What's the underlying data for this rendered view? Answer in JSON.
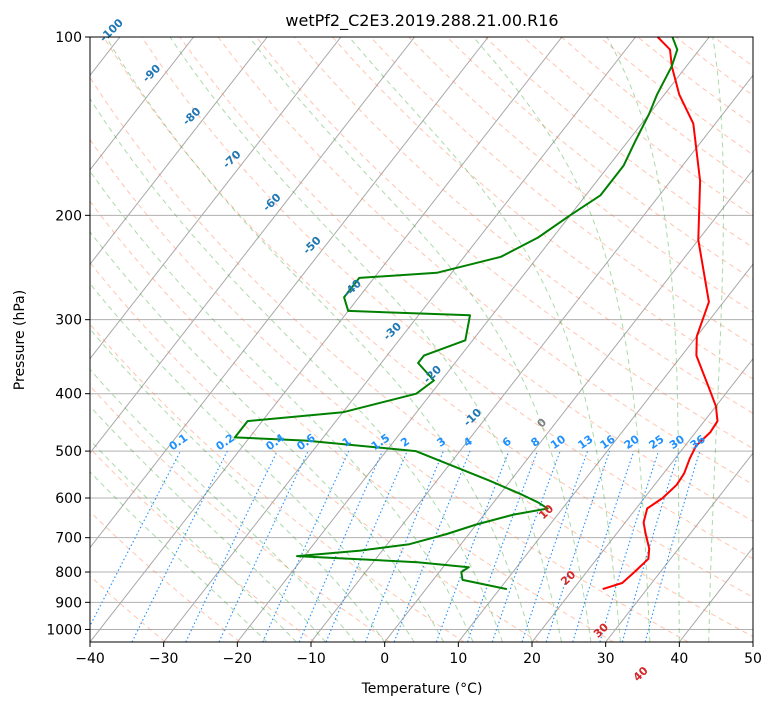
{
  "chart_data": {
    "type": "line",
    "title": "wetPf2_C2E3.2019.288.21.00.R16",
    "xlabel": "Temperature (°C)",
    "ylabel": "Pressure (hPa)",
    "xlim": [
      -40,
      50
    ],
    "ylim": [
      1050,
      100
    ],
    "y_scale": "log",
    "x_ticks": [
      -40,
      -30,
      -20,
      -10,
      0,
      10,
      20,
      30,
      40,
      50
    ],
    "y_ticks": [
      100,
      200,
      300,
      400,
      500,
      600,
      700,
      800,
      900,
      1000
    ],
    "grid": true,
    "series": [
      {
        "color": "#ff0000",
        "points": [
          [
            24,
            855
          ],
          [
            26,
            835
          ],
          [
            26.5,
            800
          ],
          [
            27,
            760
          ],
          [
            26,
            730
          ],
          [
            24,
            690
          ],
          [
            22.5,
            660
          ],
          [
            21.5,
            625
          ],
          [
            22.5,
            600
          ],
          [
            23,
            570
          ],
          [
            22.8,
            545
          ],
          [
            22,
            515
          ],
          [
            21.5,
            490
          ],
          [
            22,
            465
          ],
          [
            21.8,
            445
          ],
          [
            20,
            420
          ],
          [
            17,
            390
          ],
          [
            12,
            345
          ],
          [
            10,
            320
          ],
          [
            8,
            280
          ],
          [
            0,
            220
          ],
          [
            -6,
            175
          ],
          [
            -13,
            140
          ],
          [
            -18,
            125
          ],
          [
            -22,
            112
          ],
          [
            -24,
            105
          ],
          [
            -27,
            100
          ]
        ]
      },
      {
        "color": "#008000",
        "points": [
          [
            11,
            855
          ],
          [
            4,
            825
          ],
          [
            3,
            800
          ],
          [
            3.5,
            785
          ],
          [
            -4,
            770
          ],
          [
            -21,
            752
          ],
          [
            -13,
            736
          ],
          [
            -7,
            718
          ],
          [
            -3,
            690
          ],
          [
            0,
            665
          ],
          [
            4,
            640
          ],
          [
            8,
            625
          ],
          [
            6,
            610
          ],
          [
            3,
            592
          ],
          [
            -3,
            560
          ],
          [
            -16,
            500
          ],
          [
            -32,
            480
          ],
          [
            -42,
            474
          ],
          [
            -42,
            445
          ],
          [
            -30,
            430
          ],
          [
            -22,
            400
          ],
          [
            -21,
            380
          ],
          [
            -25,
            355
          ],
          [
            -25,
            345
          ],
          [
            -21,
            325
          ],
          [
            -23,
            295
          ],
          [
            -40,
            290
          ],
          [
            -42,
            275
          ],
          [
            -42,
            255
          ],
          [
            -32,
            250
          ],
          [
            -25,
            235
          ],
          [
            -22,
            218
          ],
          [
            -20,
            200
          ],
          [
            -18,
            185
          ],
          [
            -18,
            165
          ],
          [
            -19,
            150
          ],
          [
            -20,
            135
          ],
          [
            -21,
            125
          ],
          [
            -22,
            112
          ],
          [
            -23,
            105
          ],
          [
            -25,
            100
          ]
        ]
      }
    ],
    "isotherms": {
      "values": [
        -100,
        -90,
        -80,
        -70,
        -60,
        -50,
        -40,
        -30,
        -20,
        -10,
        0,
        10,
        20,
        30,
        40,
        50
      ],
      "color": "#1f77b4"
    },
    "dry_adiabats": {
      "color": "#ff7f50"
    },
    "moist_adiabats": {
      "color": "#2ca02c"
    },
    "mixing_ratio": {
      "values": [
        0.1,
        0.2,
        0.4,
        0.6,
        1,
        1.5,
        2,
        3,
        4,
        6,
        8,
        10,
        13,
        16,
        20,
        25,
        30,
        36
      ],
      "color": "#1e90ff"
    },
    "labels": {
      "isotherms": [
        "-100",
        "-90",
        "-80",
        "-70",
        "-60",
        "-50",
        "-40",
        "-30",
        "-20",
        "-10",
        "0",
        "10",
        "20",
        "30",
        "40"
      ],
      "mixing_ratio": [
        "0.1",
        "0.2",
        "0.4",
        "0.6",
        "1",
        "1.5",
        "2",
        "3",
        "4",
        "6",
        "8",
        "10",
        "13",
        "16",
        "20",
        "25",
        "30",
        "36"
      ]
    }
  }
}
